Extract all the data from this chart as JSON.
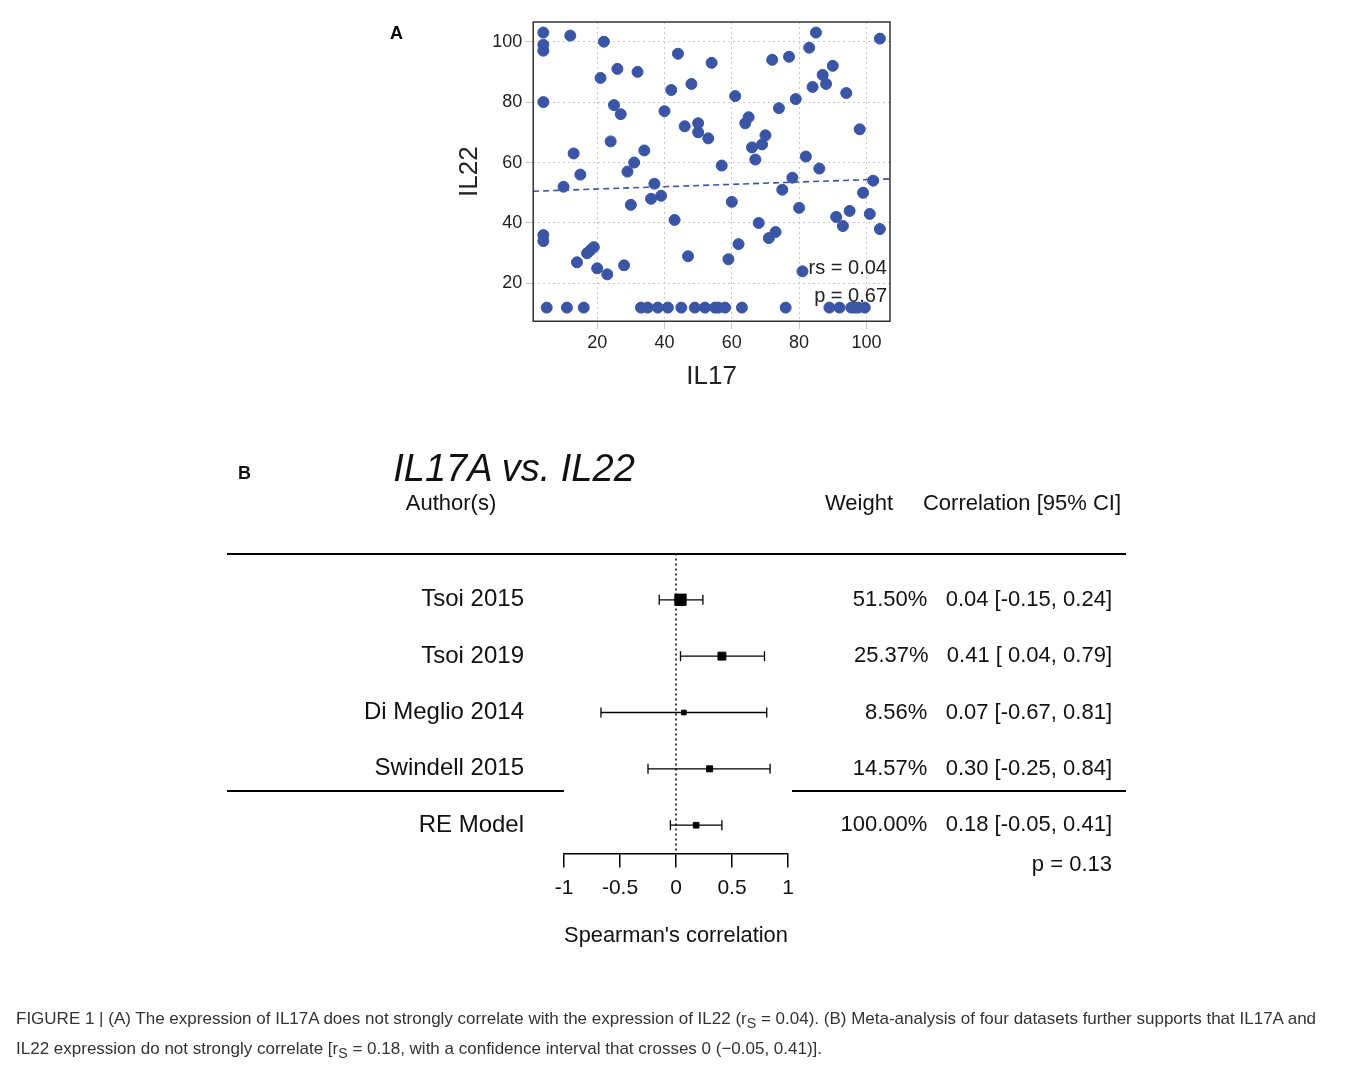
{
  "chart_data": [
    {
      "type": "scatter",
      "xlabel": "IL17",
      "ylabel": "IL22",
      "xlim": [
        1,
        107
      ],
      "ylim": [
        7.5,
        106.5
      ],
      "xticks": [
        20,
        40,
        60,
        80,
        100
      ],
      "yticks": [
        20,
        40,
        60,
        80,
        100
      ],
      "grid": true,
      "legend": false,
      "marker": "circle",
      "annotations": [
        "A",
        "rs = 0.04",
        "p = 0.67"
      ],
      "series": [
        {
          "color": "#3a55a5",
          "x": [
            4,
            4,
            4,
            4,
            4,
            4,
            12,
            10,
            13,
            15,
            14,
            17,
            18,
            19,
            20,
            23,
            21,
            22,
            25,
            26,
            27,
            24,
            28,
            29,
            31,
            34,
            30,
            32,
            37,
            36,
            39,
            40,
            42,
            44,
            43,
            48,
            46,
            47,
            50,
            50,
            54,
            53,
            57,
            61,
            59,
            62,
            60,
            64,
            65,
            66,
            67,
            69,
            70,
            68,
            71,
            73,
            72,
            77,
            74,
            75,
            79,
            78,
            80,
            81,
            82,
            83,
            85,
            84,
            87,
            88,
            90,
            86,
            94,
            98,
            91,
            93,
            95,
            99,
            102,
            101,
            104,
            104,
            5,
            11,
            16,
            33,
            35,
            38,
            41,
            45,
            49,
            52,
            55,
            56,
            58,
            63,
            76,
            89,
            92,
            95.5,
            96.5,
            97.5,
            99.5
          ],
          "values": [
            103,
            99,
            97,
            80,
            36,
            34,
            102,
            52,
            63,
            56,
            27,
            30,
            31,
            32,
            25,
            23,
            88,
            100,
            79,
            91,
            76,
            67,
            26,
            57,
            60,
            64,
            46,
            90,
            53,
            48,
            49,
            77,
            84,
            96,
            41,
            86,
            72,
            29,
            73,
            70,
            93,
            68,
            59,
            82,
            28,
            33,
            47,
            73,
            75,
            65,
            61,
            66,
            69,
            40,
            35,
            37,
            94,
            95,
            78,
            51,
            81,
            55,
            45,
            24,
            62,
            98,
            103,
            85,
            89,
            86,
            92,
            58,
            83,
            71,
            42,
            39,
            44,
            50,
            54,
            43,
            38,
            101,
            12,
            12,
            12,
            12,
            12,
            12,
            12,
            12,
            12,
            12,
            12,
            12,
            12,
            12,
            12,
            12,
            12,
            12,
            12,
            12,
            12
          ]
        },
        {
          "type": "line",
          "color": "#3a55a5",
          "line_style": "dashed",
          "marker": "none",
          "x": [
            1,
            107
          ],
          "values": [
            50.5,
            54.6
          ]
        }
      ]
    },
    {
      "type": "scatter",
      "orientation": "horizontal",
      "title": "IL17A vs. IL22",
      "xlabel": "Spearman's correlation",
      "xlim": [
        -1,
        1
      ],
      "xticks": [
        -1,
        -0.5,
        0,
        0.5,
        1
      ],
      "grid": false,
      "legend": false,
      "categories": [
        "Tsoi 2015",
        "Tsoi 2019",
        "Di Meglio 2014",
        "Swindell 2015",
        "RE Model"
      ],
      "ref_lines": [
        {
          "axis": "x",
          "value": 0,
          "line_style": "dotted",
          "color": "#000000"
        }
      ],
      "annotations": [
        "B",
        "Author(s)",
        "Weight",
        "Correlation [95% CI]",
        "p = 0.13",
        "FIGURE 1 | (A) The expression of IL17A does not strongly correlate with the expression of IL22 (r$_{S}$ = 0.04). (B) Meta-analysis of four datasets further supports that IL17A and IL22 expression do not strongly correlate [r$_{S}$ = 0.18, with a confidence interval that crosses 0 (−0.05, 0.41)]."
      ],
      "series": [
        {
          "color": "#000000",
          "marker": "square",
          "values": [
            0.04,
            0.41,
            0.07,
            0.3,
            0.18
          ],
          "errors": [
            [
              -0.15,
              0.24
            ],
            [
              0.04,
              0.79
            ],
            [
              -0.67,
              0.81
            ],
            [
              -0.25,
              0.84
            ],
            [
              -0.05,
              0.41
            ]
          ],
          "sizes": [
            1,
            0.49,
            0.17,
            0.28,
            null
          ],
          "value_labels": [
            "51.50%   0.04 [-0.15, 0.24]",
            "25.37%   0.41 [ 0.04, 0.79]",
            "8.56%   0.07 [-0.67, 0.81]",
            "14.57%   0.30 [-0.25, 0.84]",
            "100.00%   0.18 [-0.05, 0.41]"
          ]
        }
      ]
    }
  ]
}
